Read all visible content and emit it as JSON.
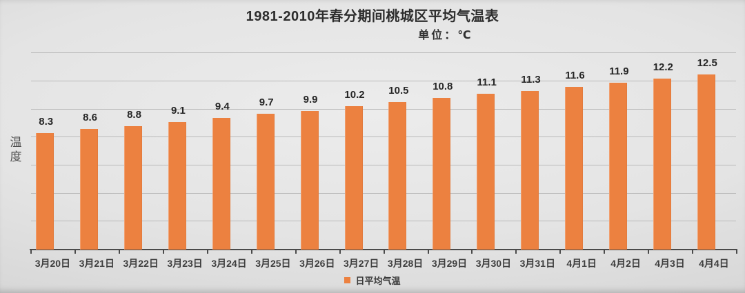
{
  "chart_data": {
    "type": "bar",
    "title": "1981-2010年春分期间桃城区平均气温表",
    "unit_label": "单位：℃",
    "ylabel": "温度",
    "xlabel": "",
    "categories": [
      "3月20日",
      "3月21日",
      "3月22日",
      "3月23日",
      "3月24日",
      "3月25日",
      "3月26日",
      "3月27日",
      "3月28日",
      "3月29日",
      "3月30日",
      "3月31日",
      "4月1日",
      "4月2日",
      "4月3日",
      "4月4日"
    ],
    "series": [
      {
        "name": "日平均气温",
        "values": [
          8.3,
          8.6,
          8.8,
          9.1,
          9.4,
          9.7,
          9.9,
          10.2,
          10.5,
          10.8,
          11.1,
          11.3,
          11.6,
          11.9,
          12.2,
          12.5
        ]
      }
    ],
    "ylim": [
      0,
      14.6
    ],
    "gridline_step": 2,
    "grid": true,
    "data_labels": true,
    "legend_position": "bottom",
    "bar_color": "#EC8140",
    "axis_color": "#4a4a4a",
    "gridline_color": "#b9b9b9"
  }
}
